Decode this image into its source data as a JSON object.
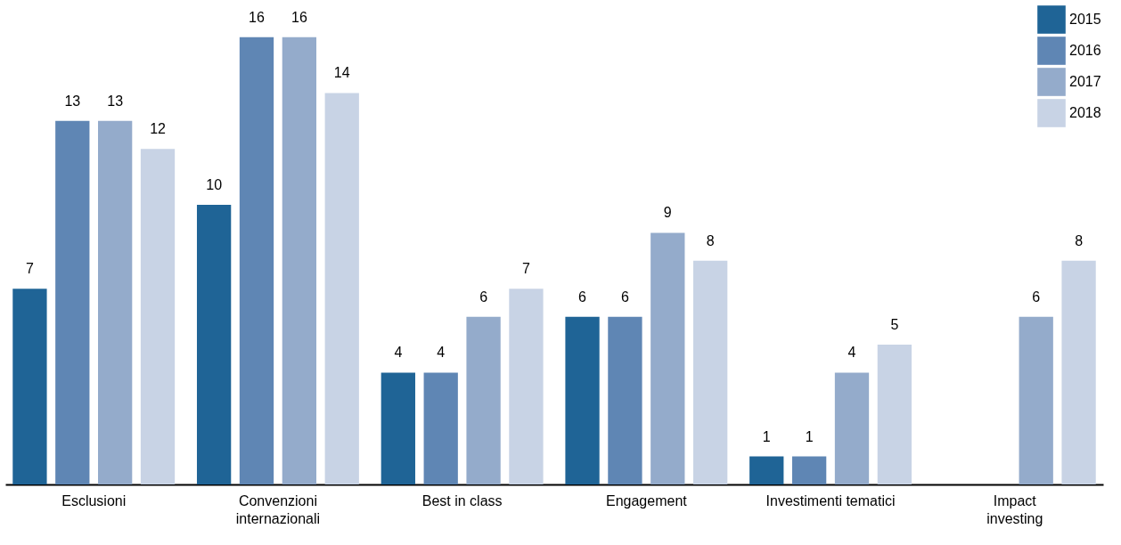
{
  "chart_data": {
    "type": "bar",
    "categories": [
      "Esclusioni",
      "Convenzioni\ninternazionali",
      "Best in class",
      "Engagement",
      "Investimenti tematici",
      "Impact\ninvesting"
    ],
    "series": [
      {
        "name": "2015",
        "color": "#1f6496",
        "values": [
          7,
          10,
          4,
          6,
          1,
          null
        ]
      },
      {
        "name": "2016",
        "color": "#5f86b4",
        "values": [
          13,
          16,
          4,
          6,
          1,
          null
        ]
      },
      {
        "name": "2017",
        "color": "#94abcb",
        "values": [
          13,
          16,
          6,
          9,
          4,
          6
        ]
      },
      {
        "name": "2018",
        "color": "#c8d3e5",
        "values": [
          12,
          14,
          7,
          8,
          5,
          8
        ]
      }
    ],
    "data_labels": true,
    "legend": "top right"
  }
}
